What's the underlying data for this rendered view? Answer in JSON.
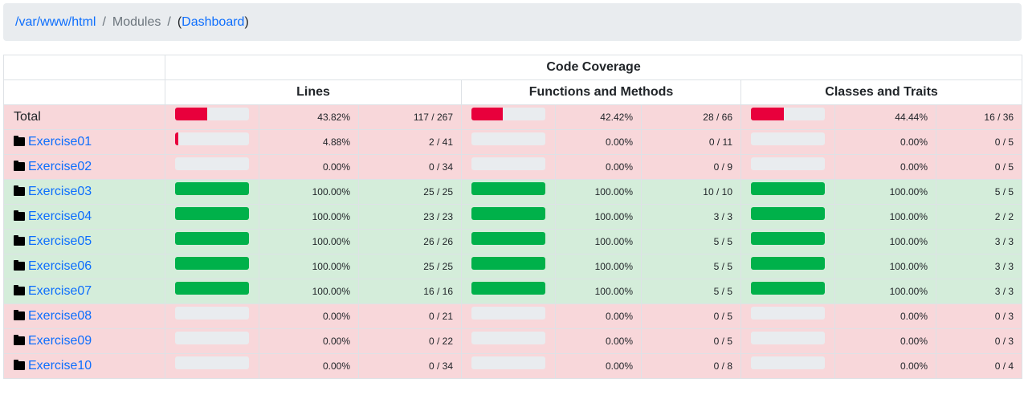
{
  "breadcrumb": {
    "root": "/var/www/html",
    "sep1": "/",
    "current": "Modules",
    "sep2": "/",
    "paren_open": "(",
    "dashboard": "Dashboard",
    "paren_close": ")"
  },
  "header": {
    "title": "Code Coverage",
    "lines": "Lines",
    "functions": "Functions and Methods",
    "classes": "Classes and Traits"
  },
  "colors": {
    "low": "#e8003c",
    "high": "#00b14a",
    "danger_bg": "#f8d7da",
    "success_bg": "#d4edda"
  },
  "rows": [
    {
      "name": "Total",
      "folder": false,
      "status": "danger",
      "lines": {
        "pct_value": 43.82,
        "pct": "43.82%",
        "count": "117 / 267"
      },
      "funcs": {
        "pct_value": 42.42,
        "pct": "42.42%",
        "count": "28 / 66"
      },
      "classes": {
        "pct_value": 44.44,
        "pct": "44.44%",
        "count": "16 / 36"
      }
    },
    {
      "name": "Exercise01",
      "folder": true,
      "status": "danger",
      "lines": {
        "pct_value": 4.88,
        "pct": "4.88%",
        "count": "2 / 41"
      },
      "funcs": {
        "pct_value": 0,
        "pct": "0.00%",
        "count": "0 / 11"
      },
      "classes": {
        "pct_value": 0,
        "pct": "0.00%",
        "count": "0 / 5"
      }
    },
    {
      "name": "Exercise02",
      "folder": true,
      "status": "danger",
      "lines": {
        "pct_value": 0,
        "pct": "0.00%",
        "count": "0 / 34"
      },
      "funcs": {
        "pct_value": 0,
        "pct": "0.00%",
        "count": "0 / 9"
      },
      "classes": {
        "pct_value": 0,
        "pct": "0.00%",
        "count": "0 / 5"
      }
    },
    {
      "name": "Exercise03",
      "folder": true,
      "status": "success",
      "lines": {
        "pct_value": 100,
        "pct": "100.00%",
        "count": "25 / 25"
      },
      "funcs": {
        "pct_value": 100,
        "pct": "100.00%",
        "count": "10 / 10"
      },
      "classes": {
        "pct_value": 100,
        "pct": "100.00%",
        "count": "5 / 5"
      }
    },
    {
      "name": "Exercise04",
      "folder": true,
      "status": "success",
      "lines": {
        "pct_value": 100,
        "pct": "100.00%",
        "count": "23 / 23"
      },
      "funcs": {
        "pct_value": 100,
        "pct": "100.00%",
        "count": "3 / 3"
      },
      "classes": {
        "pct_value": 100,
        "pct": "100.00%",
        "count": "2 / 2"
      }
    },
    {
      "name": "Exercise05",
      "folder": true,
      "status": "success",
      "lines": {
        "pct_value": 100,
        "pct": "100.00%",
        "count": "26 / 26"
      },
      "funcs": {
        "pct_value": 100,
        "pct": "100.00%",
        "count": "5 / 5"
      },
      "classes": {
        "pct_value": 100,
        "pct": "100.00%",
        "count": "3 / 3"
      }
    },
    {
      "name": "Exercise06",
      "folder": true,
      "status": "success",
      "lines": {
        "pct_value": 100,
        "pct": "100.00%",
        "count": "25 / 25"
      },
      "funcs": {
        "pct_value": 100,
        "pct": "100.00%",
        "count": "5 / 5"
      },
      "classes": {
        "pct_value": 100,
        "pct": "100.00%",
        "count": "3 / 3"
      }
    },
    {
      "name": "Exercise07",
      "folder": true,
      "status": "success",
      "lines": {
        "pct_value": 100,
        "pct": "100.00%",
        "count": "16 / 16"
      },
      "funcs": {
        "pct_value": 100,
        "pct": "100.00%",
        "count": "5 / 5"
      },
      "classes": {
        "pct_value": 100,
        "pct": "100.00%",
        "count": "3 / 3"
      }
    },
    {
      "name": "Exercise08",
      "folder": true,
      "status": "danger",
      "lines": {
        "pct_value": 0,
        "pct": "0.00%",
        "count": "0 / 21"
      },
      "funcs": {
        "pct_value": 0,
        "pct": "0.00%",
        "count": "0 / 5"
      },
      "classes": {
        "pct_value": 0,
        "pct": "0.00%",
        "count": "0 / 3"
      }
    },
    {
      "name": "Exercise09",
      "folder": true,
      "status": "danger",
      "lines": {
        "pct_value": 0,
        "pct": "0.00%",
        "count": "0 / 22"
      },
      "funcs": {
        "pct_value": 0,
        "pct": "0.00%",
        "count": "0 / 5"
      },
      "classes": {
        "pct_value": 0,
        "pct": "0.00%",
        "count": "0 / 3"
      }
    },
    {
      "name": "Exercise10",
      "folder": true,
      "status": "danger",
      "lines": {
        "pct_value": 0,
        "pct": "0.00%",
        "count": "0 / 34"
      },
      "funcs": {
        "pct_value": 0,
        "pct": "0.00%",
        "count": "0 / 8"
      },
      "classes": {
        "pct_value": 0,
        "pct": "0.00%",
        "count": "0 / 4"
      }
    }
  ]
}
